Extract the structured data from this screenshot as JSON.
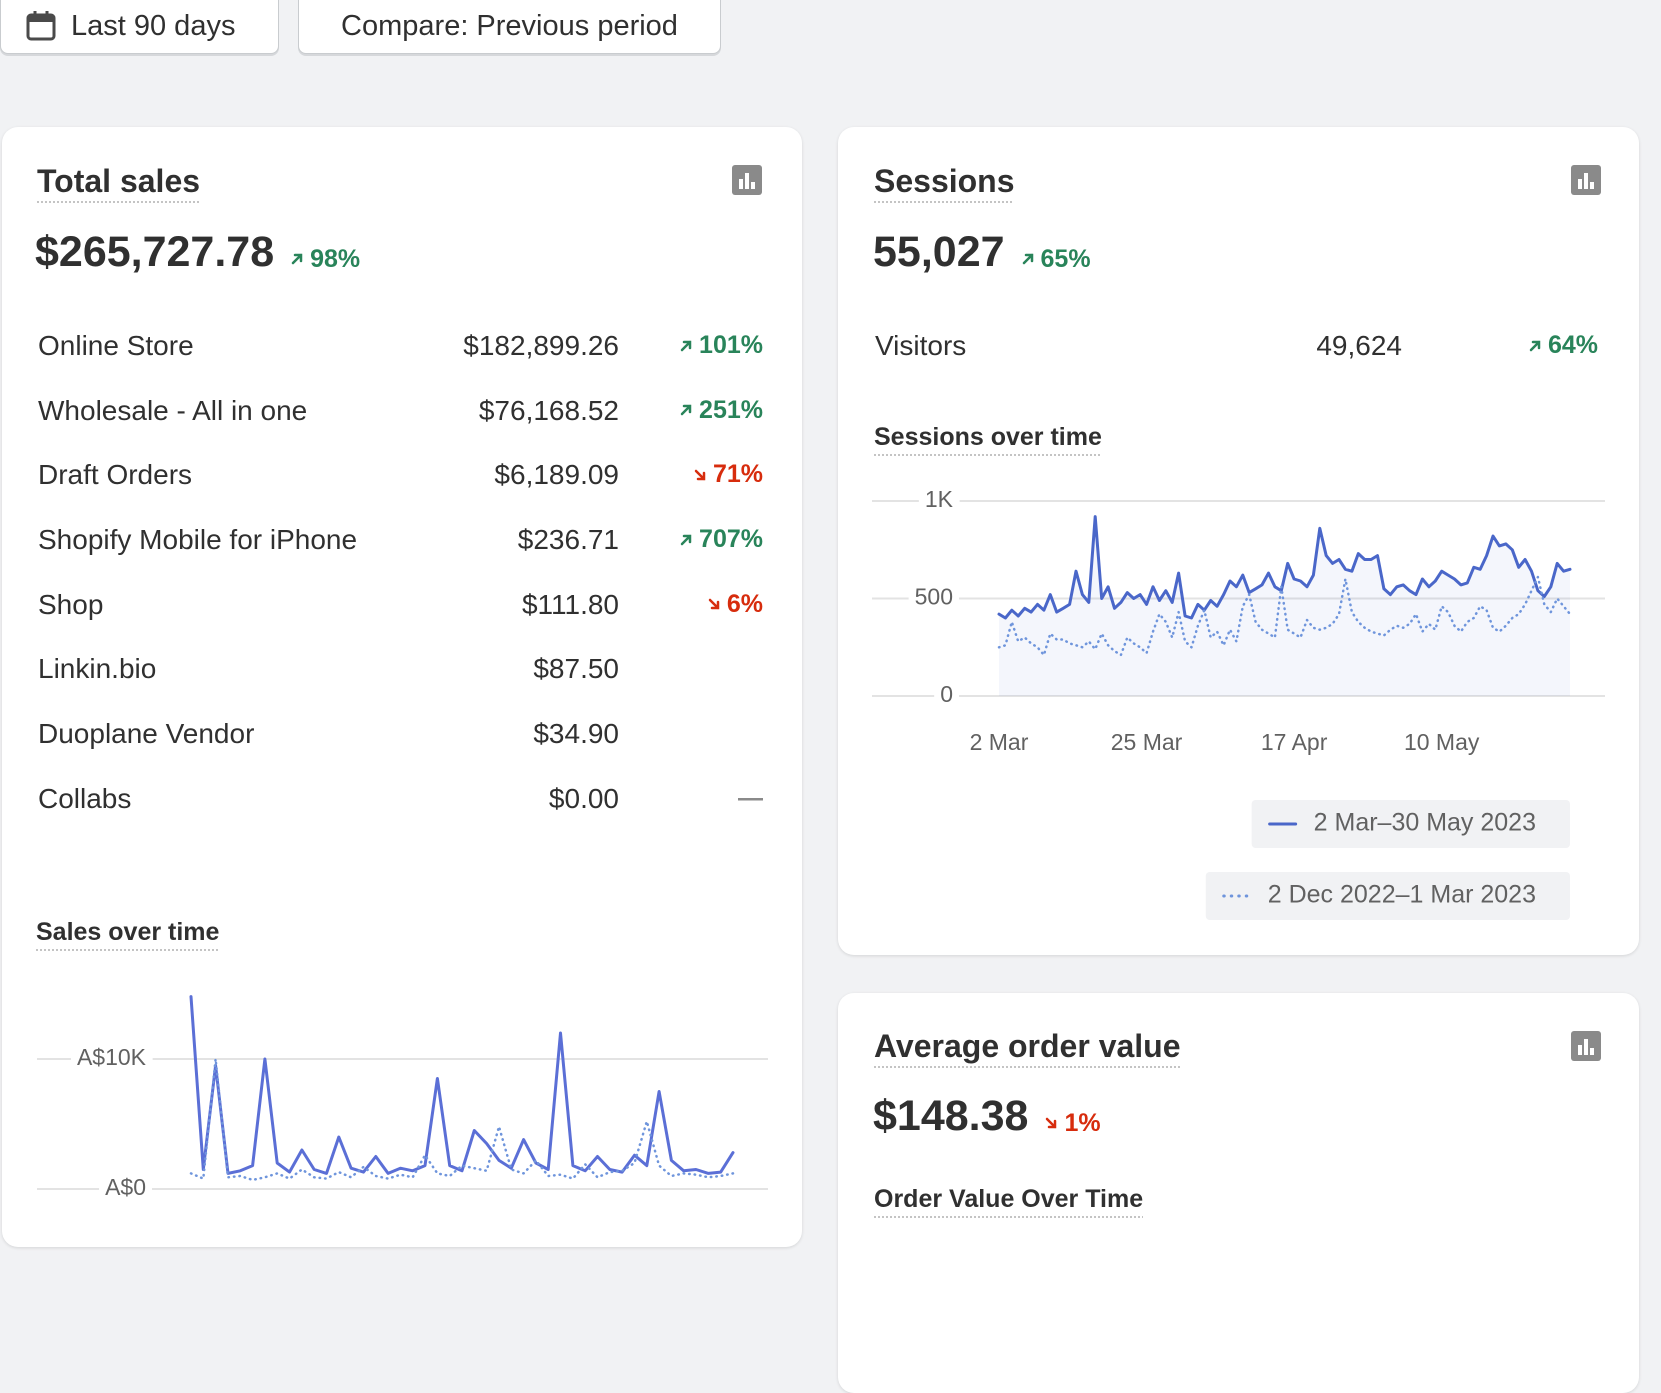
{
  "filters": {
    "date_range": "Last 90 days",
    "compare": "Compare: Previous period"
  },
  "total_sales": {
    "title": "Total sales",
    "value": "$265,727.78",
    "change": "98%",
    "direction": "up",
    "rows": [
      {
        "label": "Online Store",
        "value": "$182,899.26",
        "change": "101%",
        "direction": "up"
      },
      {
        "label": "Wholesale - All in one",
        "value": "$76,168.52",
        "change": "251%",
        "direction": "up"
      },
      {
        "label": "Draft Orders",
        "value": "$6,189.09",
        "change": "71%",
        "direction": "down"
      },
      {
        "label": "Shopify Mobile for iPhone",
        "value": "$236.71",
        "change": "707%",
        "direction": "up"
      },
      {
        "label": "Shop",
        "value": "$111.80",
        "change": "6%",
        "direction": "down"
      },
      {
        "label": "Linkin.bio",
        "value": "$87.50"
      },
      {
        "label": "Duoplane Vendor",
        "value": "$34.90"
      },
      {
        "label": "Collabs",
        "value": "$0.00",
        "change": "—"
      }
    ]
  },
  "sessions": {
    "title": "Sessions",
    "value": "55,027",
    "change": "65%",
    "direction": "up",
    "rows": [
      {
        "label": "Visitors",
        "value": "49,624",
        "change": "64%",
        "direction": "up"
      }
    ]
  },
  "average_order_value": {
    "title": "Average order value",
    "value": "$148.38",
    "change": "1%",
    "direction": "down",
    "chart_title": "Order Value Over Time"
  },
  "chart_data": [
    {
      "type": "line",
      "title": "Sales over time",
      "categories": [
        null,
        null,
        null,
        null,
        null,
        null,
        null,
        null,
        null,
        null,
        null,
        null,
        null,
        null,
        null,
        null,
        null,
        null,
        null,
        null,
        null,
        null,
        null,
        null,
        null,
        null,
        null,
        null,
        null,
        null,
        null,
        null,
        null,
        null,
        null,
        null,
        null,
        null,
        null,
        null,
        null,
        null,
        null,
        null,
        null
      ],
      "ylim": [
        0,
        15000
      ],
      "yticks": [
        {
          "value": 0,
          "label": "A$0"
        },
        {
          "value": 10000,
          "label": "A$10K"
        }
      ],
      "grid": true,
      "series": [
        {
          "color": "#5b6fd6",
          "style": "solid",
          "values": [
            14800,
            1500,
            9500,
            1200,
            1400,
            1800,
            10000,
            2000,
            1300,
            3000,
            1500,
            1200,
            4000,
            1600,
            1300,
            2500,
            1200,
            1600,
            1400,
            1800,
            8500,
            1800,
            1400,
            4500,
            3500,
            2200,
            1600,
            3800,
            2000,
            1500,
            12000,
            1800,
            1400,
            2500,
            1500,
            1300,
            2600,
            1800,
            7500,
            2200,
            1400,
            1500,
            1200,
            1300,
            2800
          ]
        },
        {
          "color": "#6f95dc",
          "style": "dotted",
          "values": [
            1200,
            800,
            10000,
            900,
            1000,
            700,
            900,
            1200,
            800,
            1500,
            900,
            800,
            1300,
            900,
            1700,
            1000,
            800,
            1100,
            900,
            2600,
            1200,
            1000,
            1800,
            1600,
            1400,
            4800,
            1500,
            1200,
            2200,
            1000,
            1100,
            800,
            1900,
            900,
            1300,
            1400,
            2000,
            5200,
            1800,
            1000,
            1200,
            1100,
            900,
            1000,
            1200
          ]
        }
      ]
    },
    {
      "type": "line",
      "title": "Sessions over time",
      "categories": [
        "2 Mar",
        null,
        null,
        null,
        null,
        null,
        null,
        null,
        null,
        null,
        null,
        null,
        null,
        null,
        null,
        null,
        null,
        null,
        null,
        null,
        null,
        null,
        null,
        "25 Mar",
        null,
        null,
        null,
        null,
        null,
        null,
        null,
        null,
        null,
        null,
        null,
        null,
        null,
        null,
        null,
        null,
        null,
        null,
        null,
        null,
        null,
        null,
        "17 Apr",
        null,
        null,
        null,
        null,
        null,
        null,
        null,
        null,
        null,
        null,
        null,
        null,
        null,
        null,
        null,
        null,
        null,
        null,
        null,
        null,
        null,
        null,
        "10 May",
        null,
        null,
        null,
        null,
        null,
        null,
        null,
        null,
        null,
        null,
        null,
        null,
        null,
        null,
        null,
        null,
        null,
        null,
        null,
        null
      ],
      "ylim": [
        0,
        1000
      ],
      "yticks": [
        0,
        500,
        {
          "value": 1000,
          "label": "1K"
        }
      ],
      "grid": true,
      "series": [
        {
          "name": "2 Mar–30 May 2023",
          "color": "#4a67c9",
          "style": "solid",
          "area": true,
          "values": [
            420,
            400,
            440,
            410,
            450,
            430,
            470,
            440,
            520,
            430,
            450,
            470,
            640,
            520,
            480,
            920,
            500,
            560,
            450,
            480,
            530,
            500,
            520,
            470,
            560,
            490,
            540,
            480,
            630,
            410,
            400,
            470,
            440,
            490,
            460,
            520,
            590,
            560,
            620,
            530,
            550,
            570,
            630,
            560,
            540,
            680,
            600,
            590,
            560,
            620,
            860,
            720,
            680,
            700,
            650,
            640,
            730,
            700,
            700,
            720,
            550,
            520,
            560,
            570,
            540,
            520,
            600,
            560,
            590,
            640,
            620,
            600,
            570,
            580,
            660,
            650,
            720,
            820,
            770,
            780,
            750,
            660,
            700,
            640,
            540,
            510,
            560,
            680,
            640,
            650
          ]
        },
        {
          "name": "2 Dec 2022–1 Mar 2023",
          "color": "#6f95dc",
          "style": "dotted",
          "values": [
            250,
            260,
            380,
            280,
            300,
            270,
            250,
            210,
            320,
            290,
            290,
            270,
            260,
            250,
            280,
            240,
            320,
            260,
            230,
            210,
            300,
            270,
            250,
            220,
            330,
            420,
            380,
            300,
            430,
            280,
            250,
            360,
            440,
            300,
            330,
            260,
            340,
            280,
            460,
            520,
            380,
            340,
            320,
            300,
            560,
            340,
            320,
            300,
            390,
            350,
            340,
            350,
            370,
            420,
            600,
            430,
            380,
            350,
            330,
            320,
            310,
            340,
            360,
            350,
            370,
            420,
            330,
            370,
            340,
            460,
            430,
            360,
            330,
            380,
            400,
            460,
            440,
            350,
            330,
            360,
            400,
            420,
            470,
            540,
            610,
            470,
            430,
            500,
            460,
            420
          ]
        }
      ]
    }
  ]
}
